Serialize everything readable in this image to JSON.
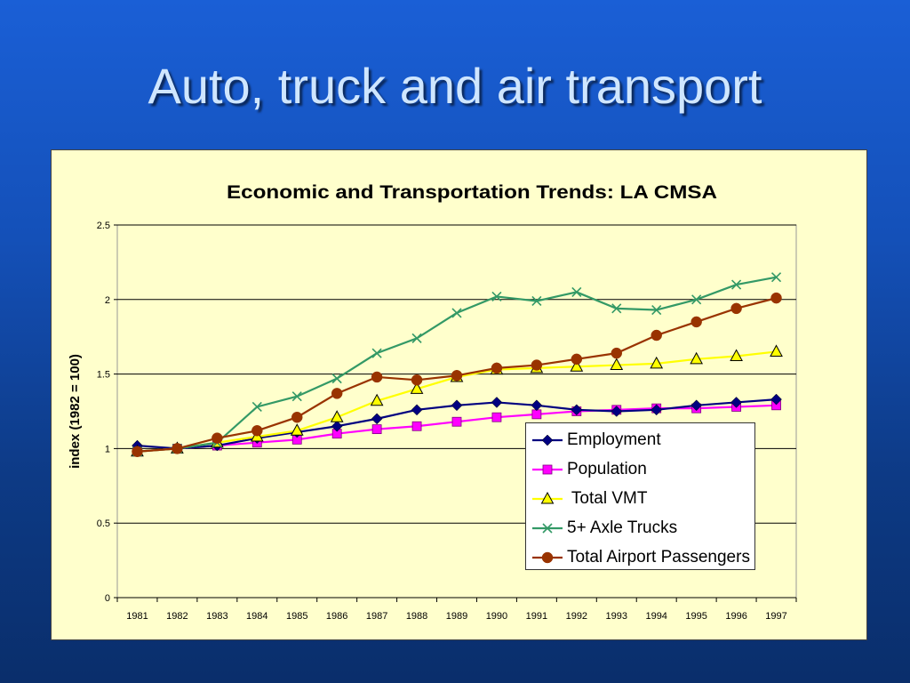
{
  "slide": {
    "title": "Auto, truck and air transport"
  },
  "chart_data": {
    "type": "line",
    "title": "Economic and Transportation Trends:  LA CMSA",
    "xlabel": "",
    "ylabel": "index (1982 = 100)",
    "ylim": [
      0,
      2.5
    ],
    "yticks": [
      "0",
      "0.5",
      "1",
      "1.5",
      "2",
      "2.5"
    ],
    "ytick_values": [
      0,
      0.5,
      1,
      1.5,
      2,
      2.5
    ],
    "categories": [
      "1981",
      "1982",
      "1983",
      "1984",
      "1985",
      "1986",
      "1987",
      "1988",
      "1989",
      "1990",
      "1991",
      "1992",
      "1993",
      "1994",
      "1995",
      "1996",
      "1997"
    ],
    "grid": "horizontal",
    "legend_position": "bottom-right inside plot",
    "series": [
      {
        "name": "Employment",
        "color": "#000080",
        "marker": "diamond",
        "values": [
          1.02,
          1.0,
          1.02,
          1.07,
          1.11,
          1.15,
          1.2,
          1.26,
          1.29,
          1.31,
          1.29,
          1.26,
          1.25,
          1.26,
          1.29,
          1.31,
          1.33
        ]
      },
      {
        "name": "Population",
        "color": "#ff00ff",
        "marker": "square",
        "values": [
          0.98,
          1.0,
          1.02,
          1.04,
          1.06,
          1.1,
          1.13,
          1.15,
          1.18,
          1.21,
          1.23,
          1.25,
          1.26,
          1.27,
          1.27,
          1.28,
          1.29
        ]
      },
      {
        "name": " Total VMT",
        "color": "#ffff00",
        "marker": "triangle",
        "values": [
          0.98,
          1.0,
          1.04,
          1.08,
          1.12,
          1.21,
          1.32,
          1.4,
          1.48,
          1.53,
          1.54,
          1.55,
          1.56,
          1.57,
          1.6,
          1.62,
          1.65
        ]
      },
      {
        "name": "5+ Axle Trucks",
        "color": "#339966",
        "marker": "x",
        "values": [
          0.98,
          1.0,
          1.04,
          1.28,
          1.35,
          1.47,
          1.64,
          1.74,
          1.91,
          2.02,
          1.99,
          2.05,
          1.94,
          1.93,
          2.0,
          2.1,
          2.15
        ]
      },
      {
        "name": "Total Airport Passengers",
        "color": "#993300",
        "marker": "circle",
        "values": [
          0.98,
          1.0,
          1.07,
          1.12,
          1.21,
          1.37,
          1.48,
          1.46,
          1.49,
          1.54,
          1.56,
          1.6,
          1.64,
          1.76,
          1.85,
          1.94,
          2.01
        ]
      }
    ]
  }
}
